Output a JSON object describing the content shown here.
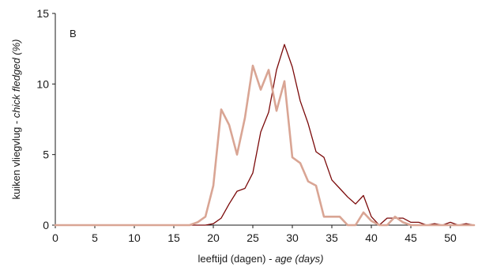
{
  "chart_data": {
    "type": "line",
    "panel_label": "B",
    "xlabel": {
      "normal": "leeftijd (dagen) - ",
      "italic": "age (days)"
    },
    "ylabel": {
      "normal": "kuiken vliegvlug  - ",
      "italic": "chick fledged  (%)"
    },
    "xlim": [
      0,
      53
    ],
    "ylim": [
      0,
      15
    ],
    "x_ticks": [
      0,
      5,
      10,
      15,
      20,
      25,
      30,
      35,
      40,
      45,
      50
    ],
    "y_ticks": [
      0,
      5,
      10,
      15
    ],
    "grid": false,
    "series": [
      {
        "color": "#7b0a0a",
        "stroke_width": 1.3,
        "x": [
          0,
          1,
          2,
          3,
          4,
          5,
          6,
          7,
          8,
          9,
          10,
          11,
          12,
          13,
          14,
          15,
          16,
          17,
          18,
          19,
          20,
          21,
          22,
          23,
          24,
          25,
          26,
          27,
          28,
          29,
          30,
          31,
          32,
          33,
          34,
          35,
          36,
          37,
          38,
          39,
          40,
          41,
          42,
          43,
          44,
          45,
          46,
          47,
          48,
          49,
          50,
          51,
          52,
          53
        ],
        "values": [
          0,
          0,
          0,
          0,
          0,
          0,
          0,
          0,
          0,
          0,
          0,
          0,
          0,
          0,
          0,
          0,
          0,
          0,
          0,
          0,
          0.1,
          0.5,
          1.5,
          2.4,
          2.6,
          3.7,
          6.6,
          8.0,
          11.0,
          12.8,
          11.2,
          8.8,
          7.2,
          5.2,
          4.8,
          3.2,
          2.6,
          2.0,
          1.5,
          2.1,
          0.6,
          0.0,
          0.5,
          0.5,
          0.5,
          0.2,
          0.2,
          0.0,
          0.1,
          0.0,
          0.2,
          0.0,
          0.1,
          0.0
        ]
      },
      {
        "color": "#d9a594",
        "stroke_width": 2.6,
        "x": [
          0,
          1,
          2,
          3,
          4,
          5,
          6,
          7,
          8,
          9,
          10,
          11,
          12,
          13,
          14,
          15,
          16,
          17,
          18,
          19,
          20,
          21,
          22,
          23,
          24,
          25,
          26,
          27,
          28,
          29,
          30,
          31,
          32,
          33,
          34,
          35,
          36,
          37,
          38,
          39,
          40,
          41,
          42,
          43,
          44,
          45,
          46,
          47,
          48,
          49,
          50,
          51,
          52,
          53
        ],
        "values": [
          0,
          0,
          0,
          0,
          0,
          0,
          0,
          0,
          0,
          0,
          0,
          0,
          0,
          0,
          0,
          0,
          0,
          0,
          0.2,
          0.6,
          2.8,
          8.2,
          7.1,
          5.0,
          7.6,
          11.3,
          9.6,
          11.0,
          8.1,
          10.2,
          4.8,
          4.4,
          3.1,
          2.8,
          0.6,
          0.6,
          0.6,
          0,
          0,
          0.9,
          0.3,
          0,
          0,
          0.6,
          0.2,
          0,
          0,
          0,
          0,
          0,
          0,
          0,
          0,
          0
        ]
      }
    ]
  }
}
